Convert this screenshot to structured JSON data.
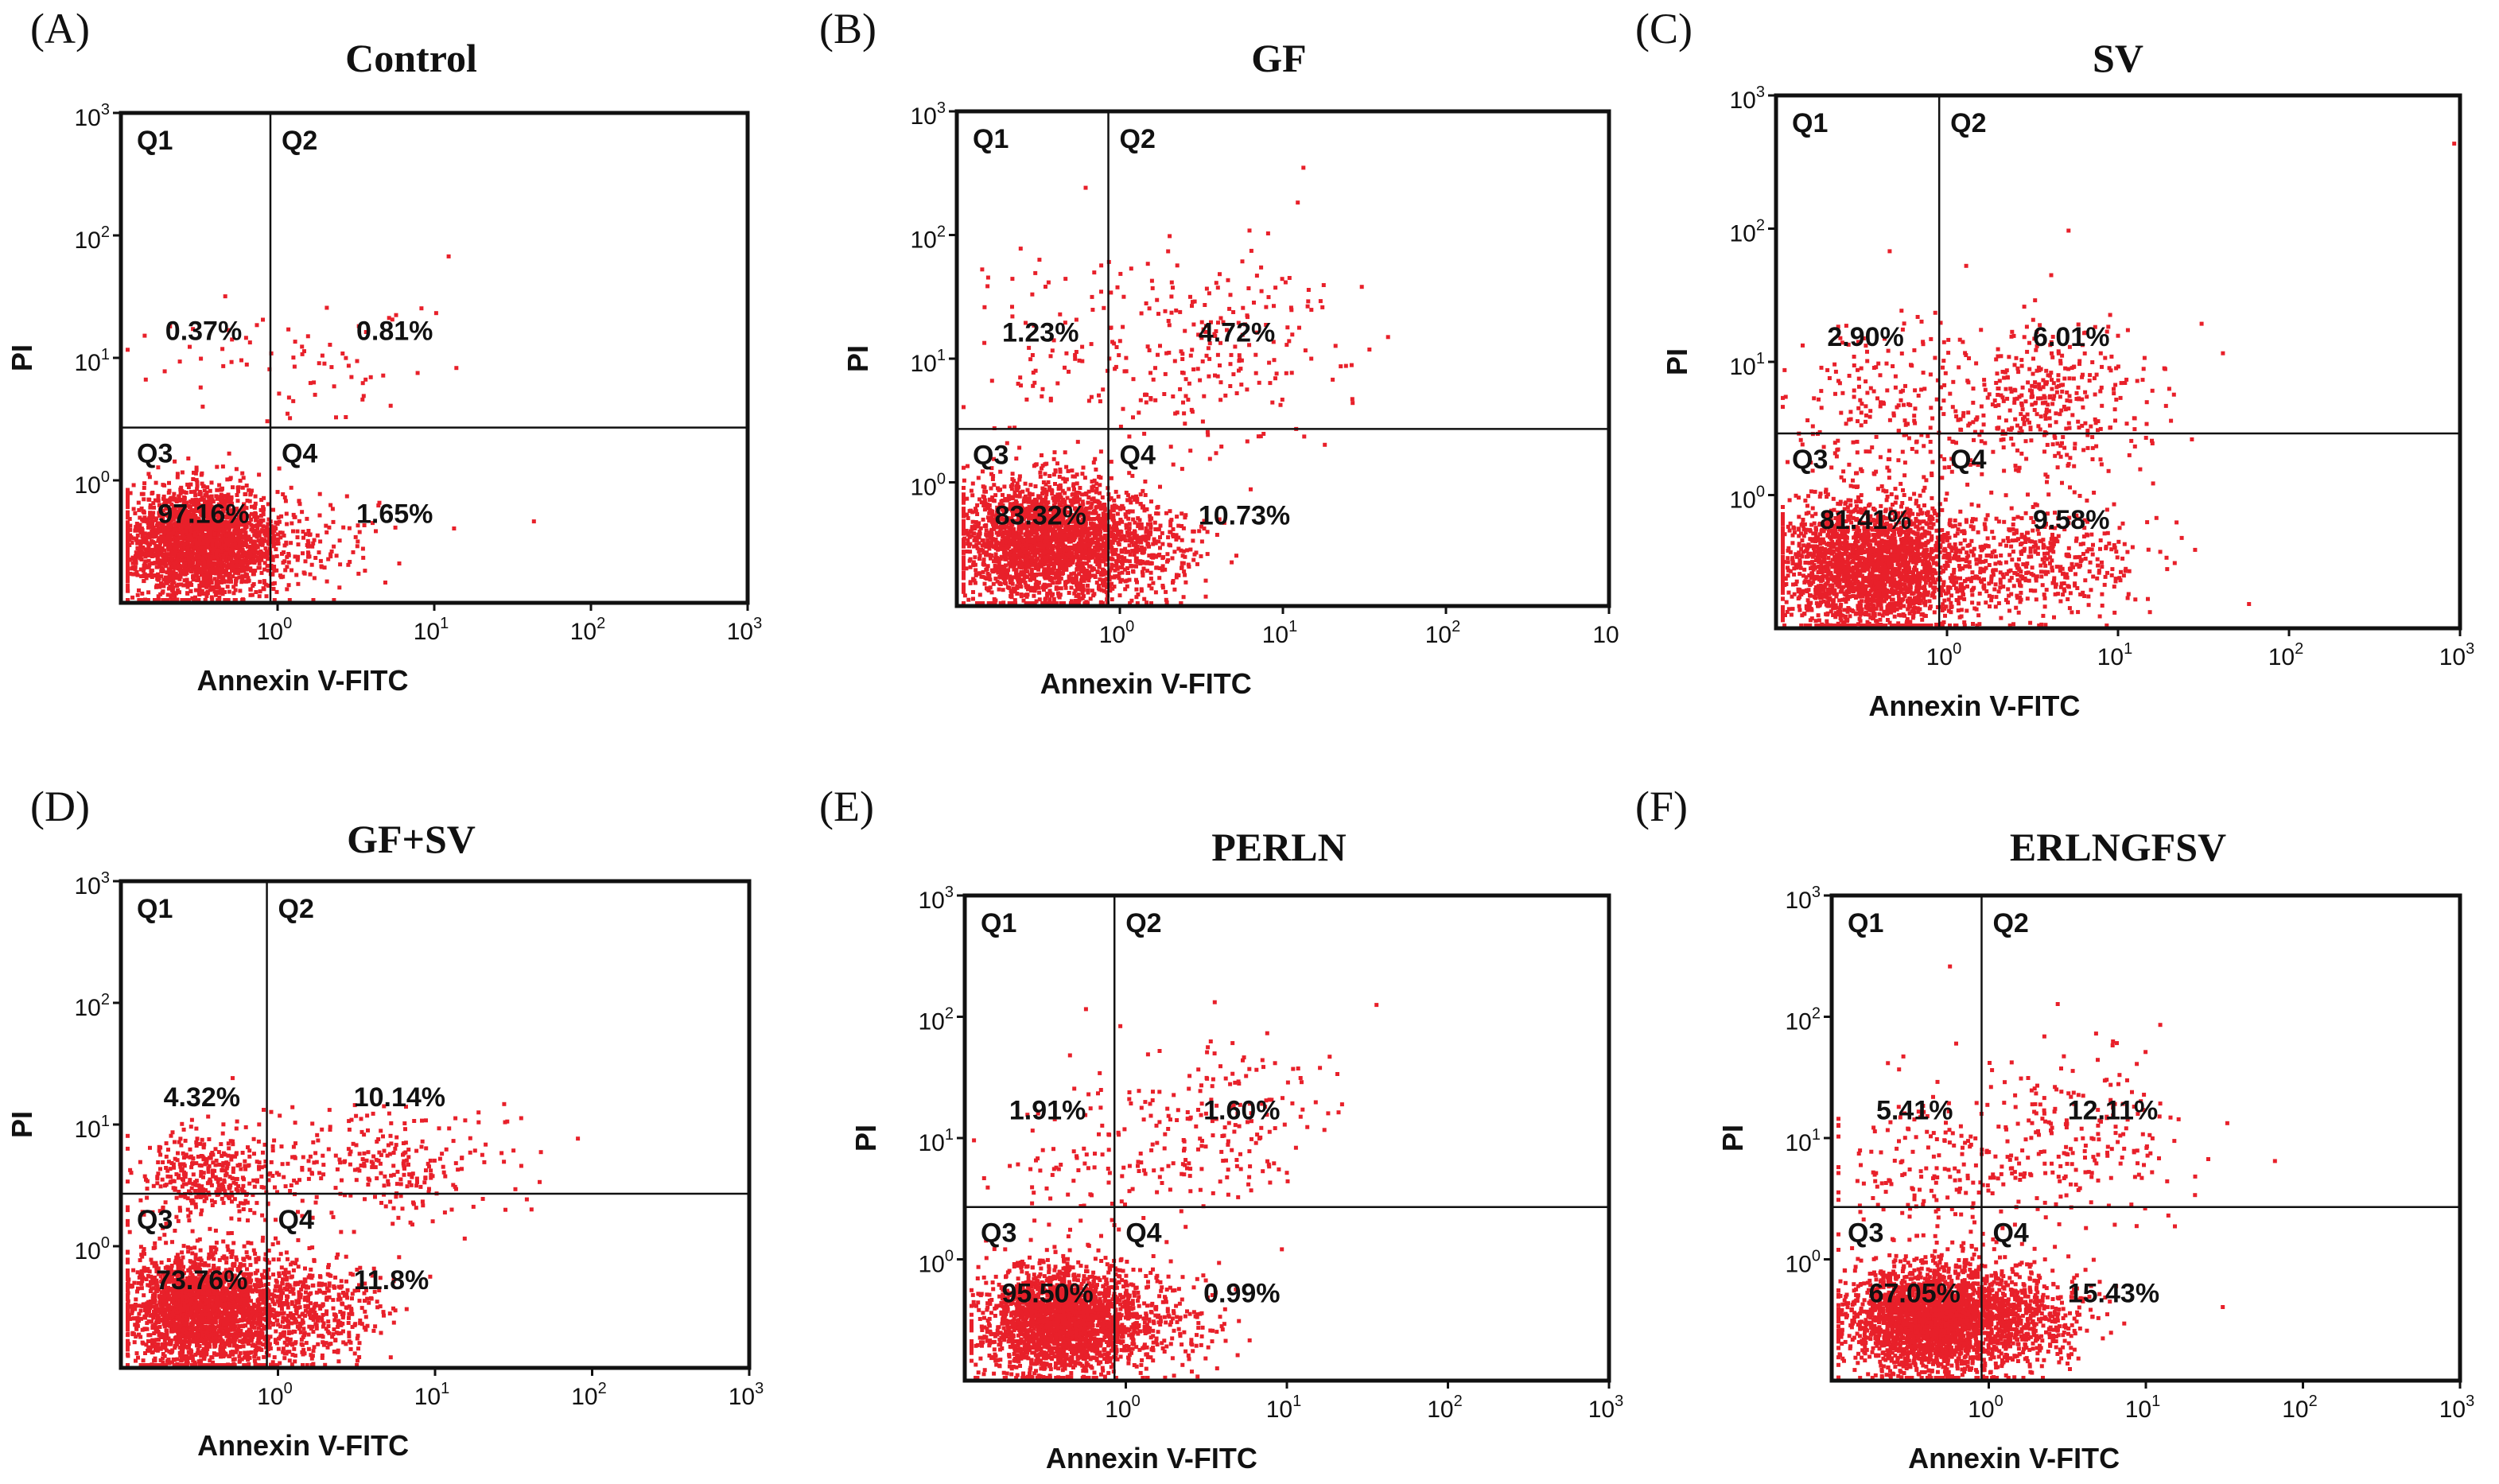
{
  "chart_data": [
    {
      "type": "scatter",
      "panel": "(A)",
      "title": "Control",
      "xlabel": "Annexin V-FITC",
      "ylabel": "PI",
      "xscale": "log",
      "yscale": "log",
      "xlim": [
        0.1,
        1000
      ],
      "ylim": [
        0.1,
        1000
      ],
      "x_ticks": [
        {
          "base": "10",
          "exp": "0"
        },
        {
          "base": "10",
          "exp": "1"
        },
        {
          "base": "10",
          "exp": "2"
        },
        {
          "base": "10",
          "exp": "3"
        }
      ],
      "y_ticks": [
        {
          "base": "10",
          "exp": "0"
        },
        {
          "base": "10",
          "exp": "1"
        },
        {
          "base": "10",
          "exp": "2"
        },
        {
          "base": "10",
          "exp": "3"
        }
      ],
      "gate": {
        "x": 0.9,
        "y": 2.7
      },
      "quadrants": [
        {
          "name": "Q1",
          "percent": "0.37%"
        },
        {
          "name": "Q2",
          "percent": "0.81%"
        },
        {
          "name": "Q3",
          "percent": "97.16%"
        },
        {
          "name": "Q4",
          "percent": "1.65%"
        }
      ],
      "populations": [
        {
          "cx": 0.32,
          "cy": 0.32,
          "sx": 0.26,
          "sy": 0.22,
          "n": 2600
        },
        {
          "cx": 1.8,
          "cy": 0.3,
          "sx": 0.2,
          "sy": 0.2,
          "n": 70
        },
        {
          "cx": 2.2,
          "cy": 12,
          "sx": 0.3,
          "sy": 0.3,
          "n": 45
        },
        {
          "cx": 0.4,
          "cy": 8,
          "sx": 0.3,
          "sy": 0.3,
          "n": 25
        }
      ],
      "outliers": [
        [
          12,
          70
        ],
        [
          13,
          0.42
        ],
        [
          42,
          0.48
        ],
        [
          0.45,
          33
        ],
        [
          5,
          22
        ]
      ],
      "color": "#e8202a"
    },
    {
      "type": "scatter",
      "panel": "(B)",
      "title": "GF",
      "xlabel": "Annexin V-FITC",
      "ylabel": "PI",
      "xscale": "log",
      "yscale": "log",
      "xlim": [
        0.1,
        1000
      ],
      "ylim": [
        0.1,
        1000
      ],
      "x_ticks": [
        {
          "base": "10",
          "exp": "0"
        },
        {
          "base": "10",
          "exp": "1"
        },
        {
          "base": "10",
          "exp": "2"
        },
        {
          "base": "10",
          "exp": ""
        }
      ],
      "y_ticks": [
        {
          "base": "10",
          "exp": "0"
        },
        {
          "base": "10",
          "exp": "1"
        },
        {
          "base": "10",
          "exp": "2"
        },
        {
          "base": "10",
          "exp": "3"
        }
      ],
      "gate": {
        "x": 0.85,
        "y": 2.7
      },
      "quadrants": [
        {
          "name": "Q1",
          "percent": "1.23%"
        },
        {
          "name": "Q2",
          "percent": "4.72%"
        },
        {
          "name": "Q3",
          "percent": "83.32%"
        },
        {
          "name": "Q4",
          "percent": "10.73%"
        }
      ],
      "populations": [
        {
          "cx": 0.35,
          "cy": 0.35,
          "sx": 0.26,
          "sy": 0.24,
          "n": 2400
        },
        {
          "cx": 1.3,
          "cy": 0.32,
          "sx": 0.2,
          "sy": 0.2,
          "n": 320
        },
        {
          "cx": 3.5,
          "cy": 12,
          "sx": 0.38,
          "sy": 0.42,
          "n": 220
        },
        {
          "cx": 0.42,
          "cy": 10,
          "sx": 0.32,
          "sy": 0.42,
          "n": 80
        }
      ],
      "outliers": [
        [
          0.6,
          250
        ],
        [
          12,
          190
        ],
        [
          17,
          27
        ],
        [
          0.15,
          40
        ],
        [
          22,
          9
        ]
      ],
      "color": "#e8202a"
    },
    {
      "type": "scatter",
      "panel": "(C)",
      "title": "SV",
      "xlabel": "Annexin V-FITC",
      "ylabel": "PI",
      "xscale": "log",
      "yscale": "log",
      "xlim": [
        0.1,
        1000
      ],
      "ylim": [
        0.1,
        1000
      ],
      "x_ticks": [
        {
          "base": "10",
          "exp": "0"
        },
        {
          "base": "10",
          "exp": "1"
        },
        {
          "base": "10",
          "exp": "2"
        },
        {
          "base": "10",
          "exp": "3"
        }
      ],
      "y_ticks": [
        {
          "base": "10",
          "exp": "0"
        },
        {
          "base": "10",
          "exp": "1"
        },
        {
          "base": "10",
          "exp": "2"
        },
        {
          "base": "10",
          "exp": "3"
        }
      ],
      "gate": {
        "x": 0.9,
        "y": 2.9
      },
      "quadrants": [
        {
          "name": "Q1",
          "percent": "2.90%"
        },
        {
          "name": "Q2",
          "percent": "6.01%"
        },
        {
          "name": "Q3",
          "percent": "81.41%"
        },
        {
          "name": "Q4",
          "percent": "9.58%"
        }
      ],
      "populations": [
        {
          "cx": 0.35,
          "cy": 0.3,
          "sx": 0.28,
          "sy": 0.24,
          "n": 2400
        },
        {
          "cx": 3.0,
          "cy": 0.32,
          "sx": 0.34,
          "sy": 0.2,
          "n": 450
        },
        {
          "cx": 3.5,
          "cy": 5,
          "sx": 0.3,
          "sy": 0.32,
          "n": 380
        },
        {
          "cx": 0.45,
          "cy": 5,
          "sx": 0.32,
          "sy": 0.34,
          "n": 220
        }
      ],
      "outliers": [
        [
          900,
          450
        ],
        [
          0.45,
          70
        ],
        [
          30,
          20
        ],
        [
          40,
          12
        ],
        [
          5,
          100
        ]
      ],
      "color": "#e8202a"
    },
    {
      "type": "scatter",
      "panel": "(D)",
      "title": "GF+SV",
      "xlabel": "Annexin V-FITC",
      "ylabel": "PI",
      "xscale": "log",
      "yscale": "log",
      "xlim": [
        0.1,
        1000
      ],
      "ylim": [
        0.1,
        1000
      ],
      "x_ticks": [
        {
          "base": "10",
          "exp": "0"
        },
        {
          "base": "10",
          "exp": "1"
        },
        {
          "base": "10",
          "exp": "2"
        },
        {
          "base": "10",
          "exp": "3"
        }
      ],
      "y_ticks": [
        {
          "base": "10",
          "exp": "0"
        },
        {
          "base": "10",
          "exp": "1"
        },
        {
          "base": "10",
          "exp": "2"
        },
        {
          "base": "10",
          "exp": "3"
        }
      ],
      "gate": {
        "x": 0.85,
        "y": 2.7
      },
      "quadrants": [
        {
          "name": "Q1",
          "percent": "4.32%"
        },
        {
          "name": "Q2",
          "percent": "10.14%"
        },
        {
          "name": "Q3",
          "percent": "73.76%"
        },
        {
          "name": "Q4",
          "percent": "11.8%"
        }
      ],
      "populations": [
        {
          "cx": 0.33,
          "cy": 0.3,
          "sx": 0.26,
          "sy": 0.24,
          "n": 2400
        },
        {
          "cx": 1.6,
          "cy": 0.32,
          "sx": 0.24,
          "sy": 0.2,
          "n": 420
        },
        {
          "cx": 0.35,
          "cy": 4,
          "sx": 0.22,
          "sy": 0.18,
          "n": 360
        },
        {
          "cx": 4.0,
          "cy": 5,
          "sx": 0.4,
          "sy": 0.22,
          "n": 260
        }
      ],
      "outliers": [
        [
          15,
          1.2
        ],
        [
          28,
          11
        ],
        [
          45,
          3.5
        ],
        [
          0.5,
          25
        ],
        [
          3,
          15
        ]
      ],
      "color": "#e8202a"
    },
    {
      "type": "scatter",
      "panel": "(E)",
      "title": "PERLN",
      "xlabel": "Annexin V-FITC",
      "ylabel": "PI",
      "xscale": "log",
      "yscale": "log",
      "xlim": [
        0.1,
        1000
      ],
      "ylim": [
        0.1,
        1000
      ],
      "x_ticks": [
        {
          "base": "10",
          "exp": "0"
        },
        {
          "base": "10",
          "exp": "1"
        },
        {
          "base": "10",
          "exp": "2"
        },
        {
          "base": "10",
          "exp": "3"
        }
      ],
      "y_ticks": [
        {
          "base": "10",
          "exp": "0"
        },
        {
          "base": "10",
          "exp": "1"
        },
        {
          "base": "10",
          "exp": "2"
        },
        {
          "base": "10",
          "exp": "3"
        }
      ],
      "gate": {
        "x": 0.85,
        "y": 2.7
      },
      "quadrants": [
        {
          "name": "Q1",
          "percent": "1.91%"
        },
        {
          "name": "Q2",
          "percent": "1.60%"
        },
        {
          "name": "Q3",
          "percent": "95.50%"
        },
        {
          "name": "Q4",
          "percent": "0.99%"
        }
      ],
      "populations": [
        {
          "cx": 0.38,
          "cy": 0.32,
          "sx": 0.24,
          "sy": 0.22,
          "n": 2300
        },
        {
          "cx": 1.5,
          "cy": 0.3,
          "sx": 0.24,
          "sy": 0.2,
          "n": 200
        },
        {
          "cx": 3.5,
          "cy": 12,
          "sx": 0.34,
          "sy": 0.36,
          "n": 190
        },
        {
          "cx": 0.5,
          "cy": 6,
          "sx": 0.28,
          "sy": 0.36,
          "n": 80
        }
      ],
      "outliers": [
        [
          0.55,
          120
        ],
        [
          35,
          130
        ],
        [
          12,
          30
        ],
        [
          20,
          35
        ],
        [
          0.25,
          1.5
        ]
      ],
      "color": "#e8202a"
    },
    {
      "type": "scatter",
      "panel": "(F)",
      "title": "ERLNGFSV",
      "xlabel": "Annexin V-FITC",
      "ylabel": "PI",
      "xscale": "log",
      "yscale": "log",
      "xlim": [
        0.1,
        1000
      ],
      "ylim": [
        0.1,
        1000
      ],
      "x_ticks": [
        {
          "base": "10",
          "exp": "0"
        },
        {
          "base": "10",
          "exp": "1"
        },
        {
          "base": "10",
          "exp": "2"
        },
        {
          "base": "10",
          "exp": "3"
        }
      ],
      "y_ticks": [
        {
          "base": "10",
          "exp": "0"
        },
        {
          "base": "10",
          "exp": "1"
        },
        {
          "base": "10",
          "exp": "2"
        },
        {
          "base": "10",
          "exp": "3"
        }
      ],
      "gate": {
        "x": 0.9,
        "y": 2.7
      },
      "quadrants": [
        {
          "name": "Q1",
          "percent": "5.41%"
        },
        {
          "name": "Q2",
          "percent": "12.11%"
        },
        {
          "name": "Q3",
          "percent": "67.05%"
        },
        {
          "name": "Q4",
          "percent": "15.43%"
        }
      ],
      "populations": [
        {
          "cx": 0.42,
          "cy": 0.33,
          "sx": 0.26,
          "sy": 0.22,
          "n": 2500
        },
        {
          "cx": 1.6,
          "cy": 0.34,
          "sx": 0.24,
          "sy": 0.2,
          "n": 500
        },
        {
          "cx": 0.5,
          "cy": 5,
          "sx": 0.34,
          "sy": 0.4,
          "n": 200
        },
        {
          "cx": 3.5,
          "cy": 10,
          "sx": 0.34,
          "sy": 0.38,
          "n": 210
        }
      ],
      "outliers": [
        [
          0.55,
          270
        ],
        [
          6,
          65
        ],
        [
          12,
          20
        ],
        [
          30,
          0.42
        ],
        [
          20,
          5
        ]
      ],
      "color": "#e8202a"
    }
  ]
}
